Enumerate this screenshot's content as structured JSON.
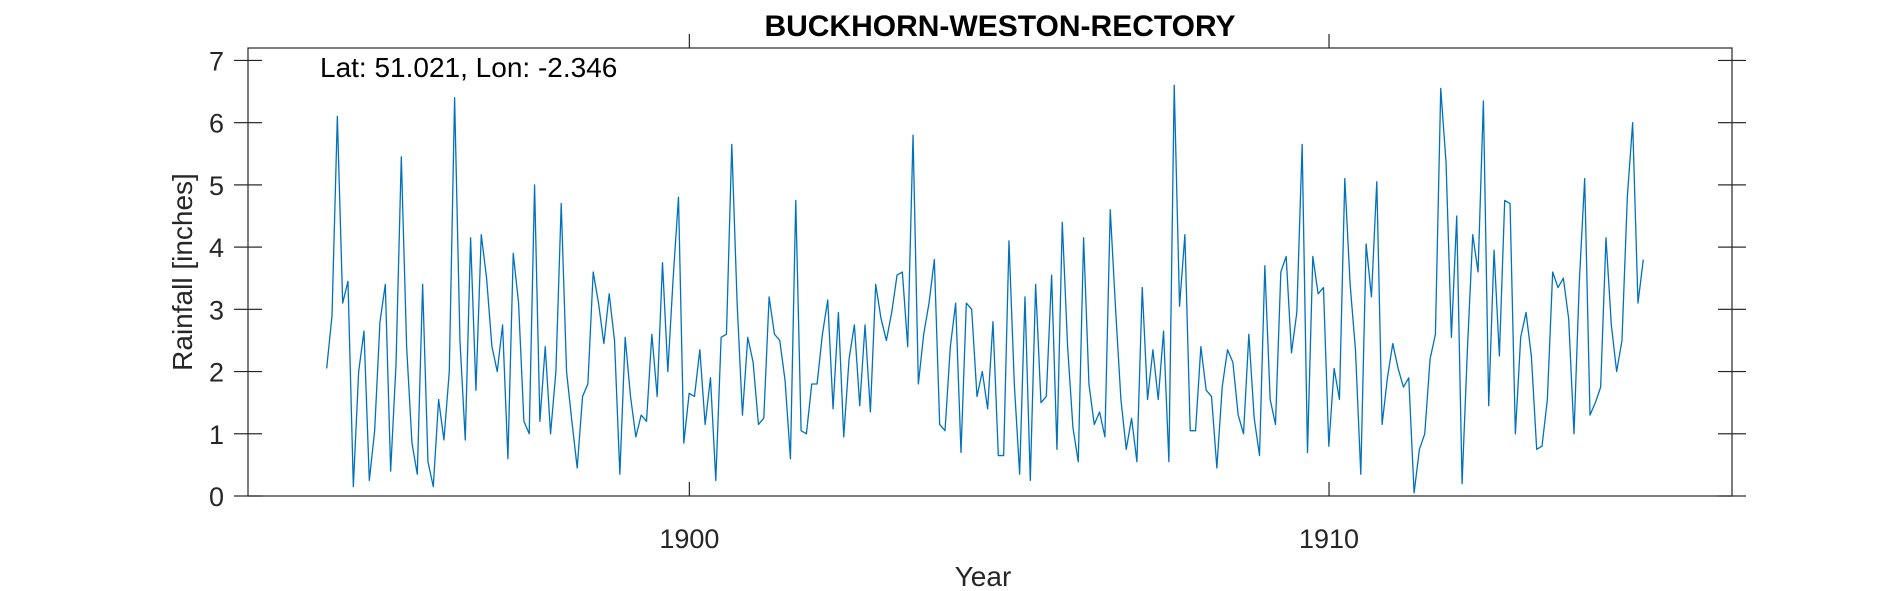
{
  "chart_data": {
    "type": "line",
    "title": "BUCKHORN-WESTON-RECTORY",
    "annotation": "Lat: 51.021, Lon: -2.346",
    "xlabel": "Year",
    "ylabel": "Rainfall [inches]",
    "xlim": [
      1893.1,
      1916.3
    ],
    "ylim": [
      0,
      7.2
    ],
    "xticks": [
      1900,
      1910
    ],
    "xtick_labels": [
      "1900",
      "1910"
    ],
    "yticks": [
      0,
      1,
      2,
      3,
      4,
      5,
      6,
      7
    ],
    "ytick_labels": [
      "0",
      "1",
      "2",
      "3",
      "4",
      "5",
      "6",
      "7"
    ],
    "grid": false,
    "line_color": "#0072BD",
    "x_start": 1894.33,
    "x_step": 0.0833333,
    "series": [
      {
        "values": [
          2.05,
          2.9,
          6.1,
          3.1,
          3.45,
          0.15,
          2.0,
          2.65,
          0.25,
          1.05,
          2.8,
          3.4,
          0.4,
          2.1,
          5.45,
          2.4,
          0.85,
          0.35,
          3.4,
          0.55,
          0.15,
          1.55,
          0.9,
          2.0,
          6.4,
          2.5,
          0.9,
          4.15,
          1.7,
          4.2,
          3.5,
          2.4,
          2.0,
          2.75,
          0.6,
          3.9,
          3.1,
          1.2,
          1.0,
          5.0,
          1.2,
          2.4,
          1.0,
          2.0,
          4.7,
          2.0,
          1.2,
          0.45,
          1.6,
          1.8,
          3.6,
          3.1,
          2.45,
          3.25,
          2.5,
          0.35,
          2.55,
          1.6,
          0.95,
          1.3,
          1.2,
          2.6,
          1.6,
          3.75,
          2.0,
          3.5,
          4.8,
          0.85,
          1.65,
          1.6,
          2.35,
          1.15,
          1.9,
          0.25,
          2.55,
          2.6,
          5.65,
          3.1,
          1.3,
          2.55,
          2.15,
          1.15,
          1.25,
          3.2,
          2.6,
          2.5,
          1.85,
          0.6,
          4.75,
          1.05,
          1.0,
          1.8,
          1.8,
          2.6,
          3.15,
          1.4,
          2.95,
          0.95,
          2.2,
          2.75,
          1.45,
          2.75,
          1.35,
          3.4,
          2.85,
          2.5,
          2.95,
          3.55,
          3.6,
          2.4,
          5.8,
          1.8,
          2.6,
          3.1,
          3.8,
          1.15,
          1.05,
          2.4,
          3.1,
          0.7,
          3.1,
          3.0,
          1.6,
          2.0,
          1.4,
          2.8,
          0.65,
          0.65,
          4.1,
          1.8,
          0.35,
          3.2,
          0.25,
          3.4,
          1.5,
          1.6,
          3.55,
          0.75,
          4.4,
          2.4,
          1.1,
          0.55,
          4.15,
          1.8,
          1.15,
          1.35,
          0.95,
          4.6,
          3.0,
          1.55,
          0.75,
          1.25,
          0.55,
          3.35,
          1.55,
          2.35,
          1.55,
          2.65,
          0.55,
          6.6,
          3.05,
          4.2,
          1.05,
          1.05,
          2.4,
          1.7,
          1.6,
          0.45,
          1.75,
          2.35,
          2.15,
          1.3,
          1.0,
          2.6,
          1.25,
          0.65,
          3.7,
          1.55,
          1.15,
          3.6,
          3.85,
          2.3,
          2.95,
          5.65,
          0.7,
          3.85,
          3.25,
          3.35,
          0.8,
          2.05,
          1.55,
          5.1,
          3.4,
          2.35,
          0.35,
          4.05,
          3.2,
          5.05,
          1.15,
          1.9,
          2.45,
          2.05,
          1.75,
          1.9,
          0.05,
          0.75,
          1.0,
          2.2,
          2.6,
          6.55,
          5.35,
          2.55,
          4.5,
          0.2,
          2.35,
          4.2,
          3.6,
          6.35,
          1.45,
          3.95,
          2.25,
          4.75,
          4.7,
          1.0,
          2.55,
          2.95,
          2.25,
          0.75,
          0.8,
          1.55,
          3.6,
          3.35,
          3.5,
          2.85,
          1.0,
          3.45,
          5.1,
          1.3,
          1.5,
          1.75,
          4.15,
          2.75,
          2.0,
          2.5,
          4.8,
          6.0,
          3.1,
          3.8
        ]
      }
    ]
  }
}
